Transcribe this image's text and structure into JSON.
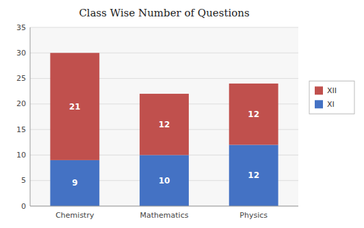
{
  "chart_data": {
    "type": "bar",
    "stacked": true,
    "title": "Class Wise Number of Questions",
    "categories": [
      "Chemistry",
      "Mathematics",
      "Physics"
    ],
    "series": [
      {
        "name": "XI",
        "color": "#4472C4",
        "values": [
          9,
          10,
          12
        ]
      },
      {
        "name": "XII",
        "color": "#C0504D",
        "values": [
          21,
          12,
          12
        ]
      }
    ],
    "ylim": [
      0,
      35
    ],
    "yticks": [
      0,
      5,
      10,
      15,
      20,
      25,
      30,
      35
    ],
    "grid": true,
    "legend": "right",
    "data_labels": true
  }
}
